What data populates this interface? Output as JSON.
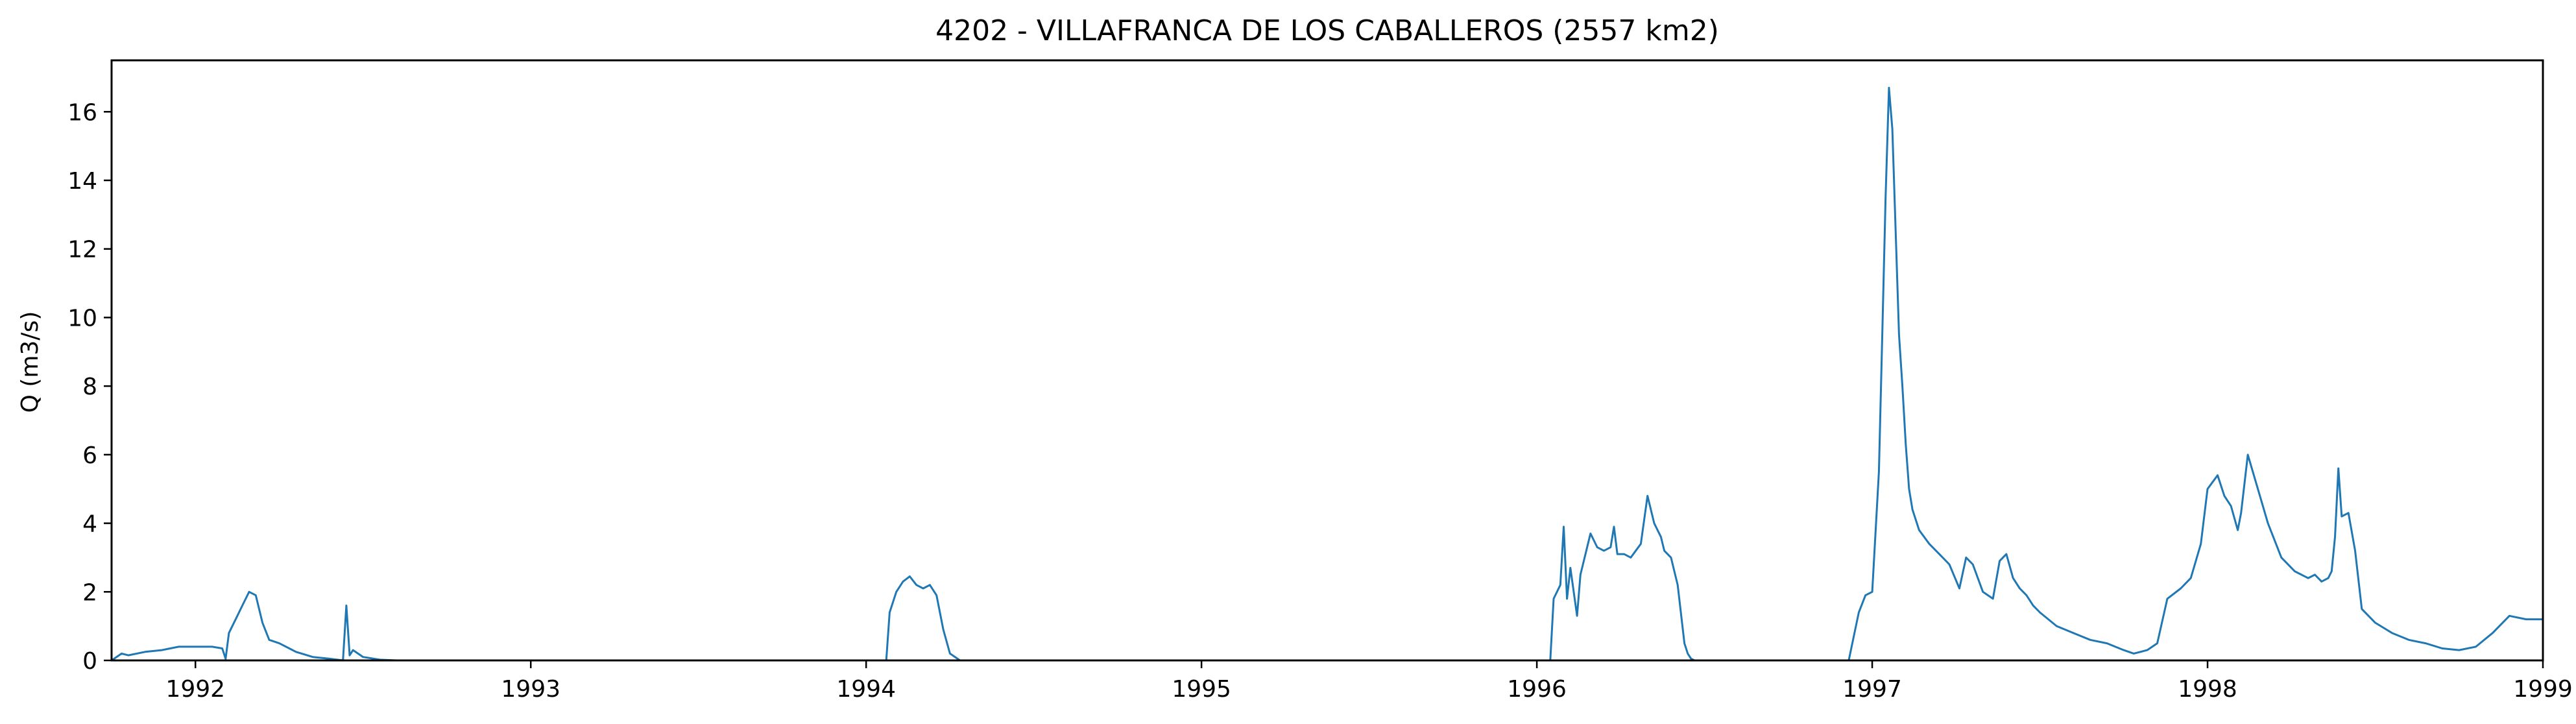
{
  "chart_data": {
    "type": "line",
    "title": "4202 - VILLAFRANCA DE LOS CABALLEROS (2557 km2)",
    "xlabel": "",
    "ylabel": "Q (m3/s)",
    "xlim": [
      1991.75,
      1999.0
    ],
    "ylim": [
      0,
      17.5
    ],
    "grid": false,
    "x_ticks": [
      1992,
      1993,
      1994,
      1995,
      1996,
      1997,
      1998,
      1999
    ],
    "x_tick_labels": [
      "1992",
      "1993",
      "1994",
      "1995",
      "1996",
      "1997",
      "1998",
      "1999"
    ],
    "y_ticks": [
      0,
      2,
      4,
      6,
      8,
      10,
      12,
      14,
      16
    ],
    "y_tick_labels": [
      "0",
      "2",
      "4",
      "6",
      "8",
      "10",
      "12",
      "14",
      "16"
    ],
    "series": [
      {
        "color": "#1f77b4",
        "x": [
          1991.75,
          1991.78,
          1991.8,
          1991.85,
          1991.9,
          1991.95,
          1992.0,
          1992.05,
          1992.08,
          1992.09,
          1992.1,
          1992.12,
          1992.14,
          1992.16,
          1992.18,
          1992.2,
          1992.22,
          1992.25,
          1992.28,
          1992.3,
          1992.35,
          1992.4,
          1992.44,
          1992.45,
          1992.46,
          1992.47,
          1992.5,
          1992.55,
          1992.6,
          1993.0,
          1993.5,
          1994.0,
          1994.06,
          1994.07,
          1994.09,
          1994.11,
          1994.13,
          1994.15,
          1994.17,
          1994.19,
          1994.21,
          1994.23,
          1994.25,
          1994.28,
          1994.3,
          1995.0,
          1995.5,
          1996.0,
          1996.04,
          1996.05,
          1996.07,
          1996.08,
          1996.09,
          1996.1,
          1996.12,
          1996.13,
          1996.16,
          1996.18,
          1996.2,
          1996.22,
          1996.23,
          1996.24,
          1996.26,
          1996.28,
          1996.31,
          1996.33,
          1996.35,
          1996.37,
          1996.38,
          1996.4,
          1996.42,
          1996.44,
          1996.45,
          1996.46,
          1996.47,
          1996.5,
          1996.93,
          1996.96,
          1996.98,
          1997.0,
          1997.02,
          1997.03,
          1997.04,
          1997.05,
          1997.06,
          1997.08,
          1997.09,
          1997.1,
          1997.11,
          1997.12,
          1997.14,
          1997.17,
          1997.2,
          1997.23,
          1997.26,
          1997.28,
          1997.3,
          1997.33,
          1997.36,
          1997.38,
          1997.4,
          1997.42,
          1997.44,
          1997.46,
          1997.48,
          1997.5,
          1997.55,
          1997.6,
          1997.65,
          1997.7,
          1997.75,
          1997.78,
          1997.82,
          1997.85,
          1997.88,
          1997.92,
          1997.95,
          1997.98,
          1998.0,
          1998.03,
          1998.05,
          1998.07,
          1998.09,
          1998.1,
          1998.12,
          1998.15,
          1998.18,
          1998.22,
          1998.26,
          1998.3,
          1998.32,
          1998.34,
          1998.36,
          1998.37,
          1998.38,
          1998.39,
          1998.4,
          1998.42,
          1998.44,
          1998.46,
          1998.5,
          1998.55,
          1998.6,
          1998.65,
          1998.7,
          1998.75,
          1998.8,
          1998.85,
          1998.9,
          1998.95,
          1999.0
        ],
        "y": [
          0.0,
          0.2,
          0.15,
          0.25,
          0.3,
          0.4,
          0.4,
          0.4,
          0.35,
          0.05,
          0.8,
          1.2,
          1.6,
          2.0,
          1.9,
          1.1,
          0.6,
          0.5,
          0.35,
          0.25,
          0.1,
          0.05,
          0.0,
          1.6,
          0.15,
          0.3,
          0.1,
          0.02,
          0.0,
          0.0,
          0.0,
          0.0,
          0.0,
          1.4,
          2.0,
          2.3,
          2.45,
          2.2,
          2.1,
          2.2,
          1.9,
          0.9,
          0.2,
          0.0,
          0.0,
          0.0,
          0.0,
          0.0,
          0.0,
          1.8,
          2.2,
          3.9,
          1.8,
          2.7,
          1.3,
          2.5,
          3.7,
          3.3,
          3.2,
          3.3,
          3.9,
          3.1,
          3.1,
          3.0,
          3.4,
          4.8,
          4.0,
          3.6,
          3.2,
          3.0,
          2.2,
          0.5,
          0.2,
          0.05,
          0.0,
          0.0,
          0.0,
          1.4,
          1.9,
          2.0,
          5.5,
          9.5,
          13.5,
          16.7,
          15.5,
          9.5,
          8.0,
          6.3,
          5.0,
          4.4,
          3.8,
          3.4,
          3.1,
          2.8,
          2.1,
          3.0,
          2.8,
          2.0,
          1.8,
          2.9,
          3.1,
          2.4,
          2.1,
          1.9,
          1.6,
          1.4,
          1.0,
          0.8,
          0.6,
          0.5,
          0.3,
          0.2,
          0.3,
          0.5,
          1.8,
          2.1,
          2.4,
          3.4,
          5.0,
          5.4,
          4.8,
          4.5,
          3.8,
          4.3,
          6.0,
          5.0,
          4.0,
          3.0,
          2.6,
          2.4,
          2.5,
          2.3,
          2.4,
          2.6,
          3.6,
          5.6,
          4.2,
          4.3,
          3.2,
          1.5,
          1.1,
          0.8,
          0.6,
          0.5,
          0.35,
          0.3,
          0.4,
          0.8,
          1.3,
          1.2,
          1.2
        ]
      }
    ]
  }
}
